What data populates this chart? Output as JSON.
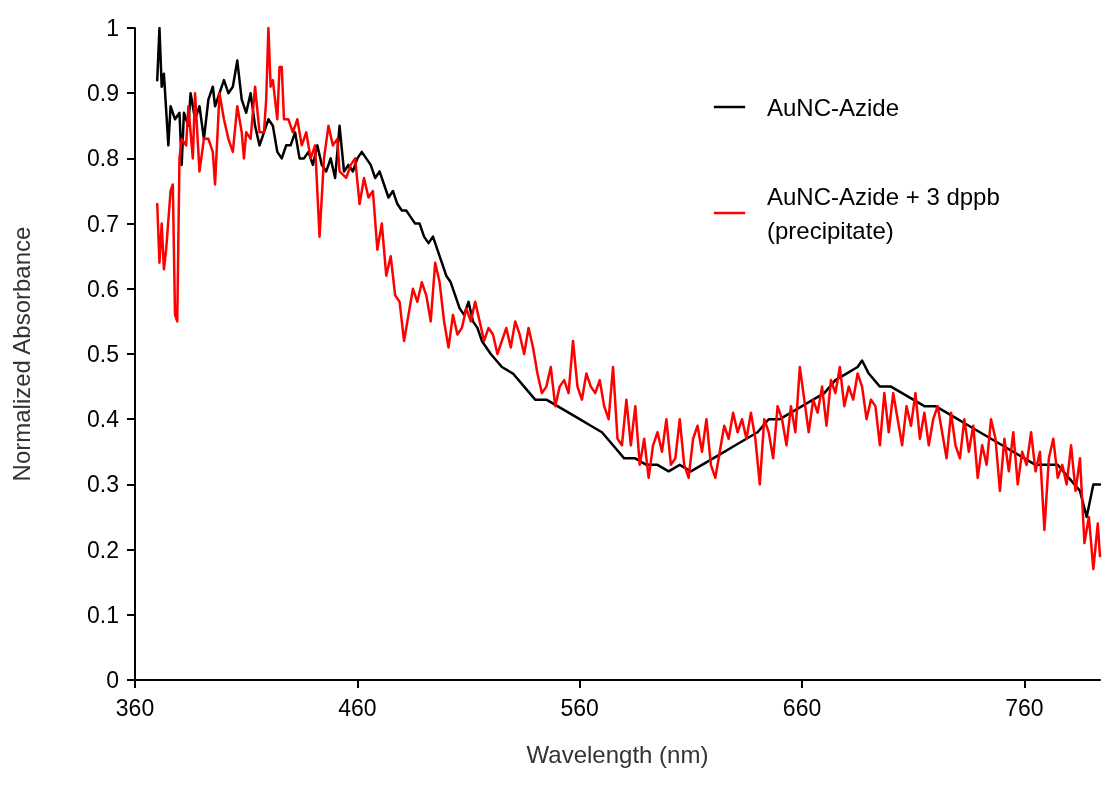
{
  "chart_data": {
    "type": "line",
    "xlabel": "Wavelength (nm)",
    "ylabel": "Normalized Absorbance",
    "xlim": [
      360,
      794
    ],
    "xticks": [
      360,
      460,
      560,
      660,
      760
    ],
    "ylim": [
      0,
      1
    ],
    "yticks": [
      0,
      0.1,
      0.2,
      0.3,
      0.4,
      0.5,
      0.6,
      0.7,
      0.8,
      0.9,
      1
    ],
    "grid": false,
    "legend": "top right",
    "marker": "none",
    "line_style": "solid",
    "series": [
      {
        "name": "AuNC-Azide",
        "color": "#000000",
        "x": [
          370,
          371,
          372,
          373,
          375,
          376,
          378,
          380,
          381,
          382,
          384,
          385,
          387,
          389,
          391,
          393,
          395,
          396,
          398,
          400,
          402,
          404,
          406,
          408,
          410,
          412,
          414,
          416,
          418,
          420,
          422,
          424,
          426,
          428,
          430,
          432,
          434,
          436,
          438,
          440,
          442,
          444,
          446,
          448,
          450,
          452,
          454,
          456,
          458,
          460,
          462,
          464,
          466,
          468,
          470,
          472,
          474,
          476,
          478,
          480,
          482,
          484,
          486,
          488,
          490,
          492,
          494,
          496,
          498,
          500,
          502,
          504,
          506,
          508,
          510,
          512,
          514,
          516,
          520,
          525,
          530,
          535,
          540,
          545,
          550,
          555,
          560,
          565,
          570,
          575,
          580,
          585,
          590,
          595,
          600,
          605,
          610,
          615,
          620,
          625,
          630,
          635,
          640,
          645,
          650,
          655,
          660,
          665,
          670,
          675,
          680,
          685,
          687,
          690,
          695,
          700,
          705,
          710,
          715,
          720,
          725,
          730,
          735,
          740,
          745,
          750,
          755,
          760,
          765,
          770,
          775,
          780,
          785,
          788,
          791,
          794
        ],
        "values": [
          0.92,
          1.0,
          0.91,
          0.93,
          0.82,
          0.88,
          0.86,
          0.87,
          0.79,
          0.87,
          0.85,
          0.9,
          0.86,
          0.88,
          0.83,
          0.89,
          0.91,
          0.88,
          0.9,
          0.92,
          0.9,
          0.91,
          0.95,
          0.89,
          0.87,
          0.9,
          0.85,
          0.82,
          0.84,
          0.86,
          0.85,
          0.81,
          0.8,
          0.82,
          0.82,
          0.84,
          0.8,
          0.8,
          0.81,
          0.79,
          0.82,
          0.79,
          0.78,
          0.8,
          0.77,
          0.85,
          0.78,
          0.79,
          0.78,
          0.8,
          0.81,
          0.8,
          0.79,
          0.77,
          0.78,
          0.76,
          0.74,
          0.75,
          0.73,
          0.72,
          0.72,
          0.71,
          0.7,
          0.7,
          0.68,
          0.67,
          0.68,
          0.66,
          0.64,
          0.62,
          0.61,
          0.59,
          0.57,
          0.56,
          0.58,
          0.55,
          0.54,
          0.52,
          0.5,
          0.48,
          0.47,
          0.45,
          0.43,
          0.43,
          0.42,
          0.41,
          0.4,
          0.39,
          0.38,
          0.36,
          0.34,
          0.34,
          0.33,
          0.33,
          0.32,
          0.33,
          0.32,
          0.33,
          0.34,
          0.35,
          0.36,
          0.37,
          0.38,
          0.4,
          0.4,
          0.41,
          0.42,
          0.43,
          0.44,
          0.46,
          0.47,
          0.48,
          0.49,
          0.47,
          0.45,
          0.45,
          0.44,
          0.43,
          0.42,
          0.42,
          0.41,
          0.4,
          0.39,
          0.38,
          0.37,
          0.36,
          0.35,
          0.34,
          0.33,
          0.33,
          0.33,
          0.31,
          0.29,
          0.25,
          0.3,
          0.3
        ]
      },
      {
        "name": "AuNC-Azide + 3 dppb (precipitate)",
        "color": "#ff0000",
        "x": [
          370,
          371,
          372,
          373,
          374,
          376,
          377,
          378,
          379,
          380,
          381,
          383,
          384,
          386,
          387,
          389,
          391,
          393,
          395,
          396,
          398,
          400,
          402,
          404,
          406,
          408,
          409,
          410,
          412,
          414,
          416,
          418,
          419,
          420,
          421,
          422,
          424,
          425,
          426,
          427,
          429,
          431,
          433,
          435,
          437,
          439,
          441,
          443,
          445,
          447,
          449,
          451,
          452,
          455,
          457,
          459,
          461,
          463,
          465,
          467,
          469,
          471,
          473,
          475,
          477,
          479,
          481,
          483,
          485,
          487,
          489,
          491,
          493,
          495,
          497,
          499,
          501,
          503,
          505,
          507,
          509,
          511,
          513,
          515,
          517,
          519,
          521,
          523,
          525,
          527,
          529,
          531,
          533,
          535,
          537,
          539,
          541,
          543,
          545,
          547,
          549,
          551,
          553,
          555,
          557,
          559,
          561,
          563,
          565,
          567,
          569,
          571,
          573,
          575,
          577,
          579,
          581,
          583,
          585,
          587,
          589,
          591,
          593,
          595,
          597,
          599,
          601,
          603,
          605,
          607,
          609,
          611,
          613,
          615,
          617,
          619,
          621,
          623,
          625,
          627,
          629,
          631,
          633,
          635,
          637,
          639,
          641,
          643,
          645,
          647,
          649,
          651,
          653,
          655,
          657,
          659,
          661,
          663,
          665,
          667,
          669,
          671,
          673,
          675,
          677,
          679,
          681,
          683,
          685,
          687,
          689,
          691,
          693,
          695,
          697,
          699,
          701,
          703,
          705,
          707,
          709,
          711,
          713,
          715,
          717,
          719,
          721,
          723,
          725,
          727,
          729,
          731,
          733,
          735,
          737,
          739,
          741,
          743,
          745,
          747,
          749,
          751,
          753,
          755,
          757,
          759,
          761,
          763,
          765,
          767,
          769,
          771,
          773,
          775,
          777,
          779,
          781,
          783,
          785,
          787,
          789,
          791,
          793,
          794
        ],
        "values": [
          0.73,
          0.64,
          0.7,
          0.63,
          0.66,
          0.75,
          0.76,
          0.56,
          0.55,
          0.8,
          0.83,
          0.82,
          0.88,
          0.8,
          0.9,
          0.78,
          0.83,
          0.83,
          0.81,
          0.76,
          0.9,
          0.86,
          0.83,
          0.81,
          0.88,
          0.84,
          0.8,
          0.84,
          0.83,
          0.91,
          0.84,
          0.84,
          0.89,
          1.0,
          0.91,
          0.92,
          0.86,
          0.94,
          0.94,
          0.86,
          0.86,
          0.84,
          0.86,
          0.82,
          0.84,
          0.8,
          0.82,
          0.68,
          0.8,
          0.85,
          0.82,
          0.83,
          0.78,
          0.77,
          0.79,
          0.8,
          0.73,
          0.77,
          0.74,
          0.75,
          0.66,
          0.7,
          0.62,
          0.65,
          0.59,
          0.58,
          0.52,
          0.56,
          0.6,
          0.58,
          0.61,
          0.59,
          0.55,
          0.64,
          0.61,
          0.55,
          0.51,
          0.56,
          0.53,
          0.54,
          0.57,
          0.55,
          0.58,
          0.55,
          0.52,
          0.54,
          0.53,
          0.5,
          0.52,
          0.54,
          0.51,
          0.55,
          0.53,
          0.5,
          0.54,
          0.51,
          0.47,
          0.44,
          0.45,
          0.48,
          0.42,
          0.45,
          0.46,
          0.44,
          0.52,
          0.45,
          0.43,
          0.47,
          0.45,
          0.44,
          0.46,
          0.42,
          0.4,
          0.48,
          0.37,
          0.36,
          0.43,
          0.36,
          0.42,
          0.33,
          0.37,
          0.31,
          0.36,
          0.38,
          0.35,
          0.4,
          0.33,
          0.34,
          0.4,
          0.33,
          0.31,
          0.37,
          0.39,
          0.35,
          0.4,
          0.33,
          0.31,
          0.35,
          0.39,
          0.37,
          0.41,
          0.38,
          0.4,
          0.37,
          0.41,
          0.37,
          0.3,
          0.4,
          0.38,
          0.34,
          0.42,
          0.4,
          0.36,
          0.42,
          0.38,
          0.48,
          0.43,
          0.38,
          0.43,
          0.41,
          0.45,
          0.39,
          0.46,
          0.44,
          0.48,
          0.42,
          0.45,
          0.43,
          0.47,
          0.45,
          0.4,
          0.43,
          0.42,
          0.36,
          0.44,
          0.38,
          0.44,
          0.4,
          0.36,
          0.42,
          0.39,
          0.44,
          0.37,
          0.41,
          0.36,
          0.4,
          0.42,
          0.38,
          0.34,
          0.41,
          0.36,
          0.34,
          0.4,
          0.35,
          0.39,
          0.31,
          0.36,
          0.33,
          0.4,
          0.37,
          0.29,
          0.37,
          0.32,
          0.38,
          0.3,
          0.35,
          0.33,
          0.38,
          0.32,
          0.35,
          0.23,
          0.34,
          0.37,
          0.31,
          0.33,
          0.3,
          0.36,
          0.29,
          0.34,
          0.21,
          0.25,
          0.17,
          0.24,
          0.19
        ]
      }
    ]
  }
}
